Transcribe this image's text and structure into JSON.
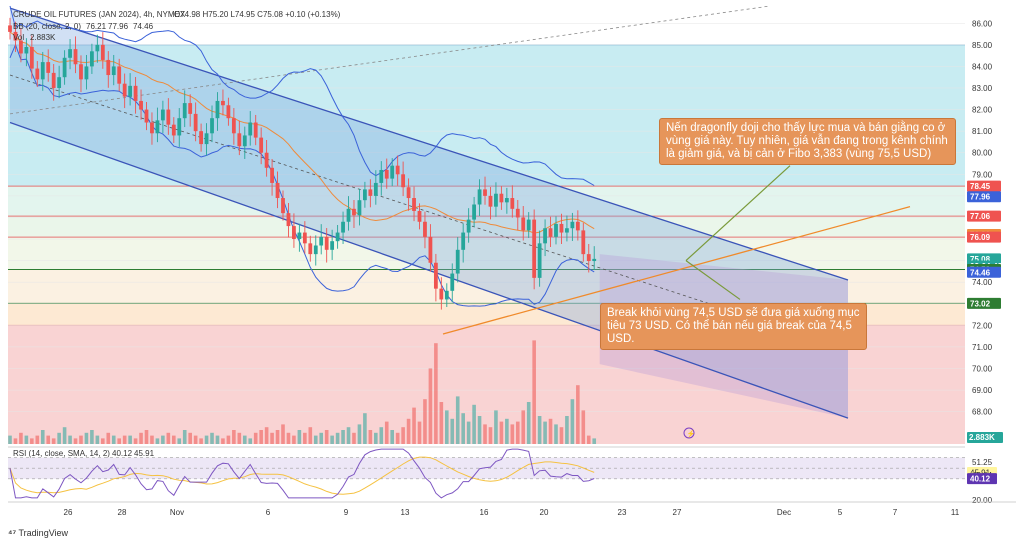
{
  "header": {
    "symbol": "CRUDE OIL FUTURES (JAN 2024), 4h, NYMEX",
    "ohlc": "O74.98 H75.20 L74.95 C75.08 +0.10 (+0.13%)",
    "bb": "BB (20, close, 2, 0)",
    "bb_values": [
      "76.21",
      "77.96",
      "74.46"
    ],
    "vol": "Vol",
    "vol_value": "2.883K"
  },
  "rsi_header": {
    "label": "RSI (14, close, SMA, 14, 2)",
    "values": [
      "40.12",
      "45.91"
    ]
  },
  "annotations": {
    "upper": "Nến dragonfly doji cho thấy lực mua và bán giằng co ở vùng giá này. Tuy nhiên, giá vẫn đang trong kênh chính là giảm giá, và bị cản ở Fibo 3,383 (vùng 75,5 USD)",
    "lower": "Break khỏi vùng 74,5 USD sẽ đưa giá xuống mục tiêu 73 USD. Có thể bán nếu giá break của 74,5 USD."
  },
  "logo": {
    "text": "TradingView"
  },
  "colors": {
    "up": "#26a69a",
    "down": "#ef5350",
    "channel": "#3a54b8",
    "bb": "#3b62d9",
    "annotation": "#e6955a"
  },
  "chart_data": {
    "type": "candlestick",
    "price_axis": {
      "range": [
        66.5,
        86.8
      ],
      "ticks": [
        "86.00",
        "85.00",
        "84.00",
        "83.00",
        "82.00",
        "81.00",
        "80.00",
        "79.00",
        "78.00",
        "77.00",
        "76.00",
        "75.00",
        "74.00",
        "73.00",
        "72.00",
        "71.00",
        "70.00",
        "69.00",
        "68.00"
      ]
    },
    "x_ticks": [
      "26",
      "28",
      "Nov",
      "6",
      "9",
      "13",
      "16",
      "20",
      "23",
      "27",
      "Dec",
      "5",
      "7",
      "11"
    ],
    "price_labels": [
      {
        "value": 78.45,
        "text": "78.45",
        "color": "#ef5350"
      },
      {
        "value": 77.96,
        "text": "77.96",
        "color": "#3b62d9"
      },
      {
        "value": 77.06,
        "text": "77.06",
        "color": "#ef5350"
      },
      {
        "value": 76.21,
        "text": "76.21",
        "color": "#ef8a3a"
      },
      {
        "value": 76.09,
        "text": "76.09",
        "color": "#ef5350"
      },
      {
        "value": 75.08,
        "text": "75.08",
        "color": "#26a69a"
      },
      {
        "value": 74.75,
        "text": "03:04:42",
        "color": "#26a69a"
      },
      {
        "value": 74.59,
        "text": "74.59",
        "color": "#2e7d32"
      },
      {
        "value": 74.46,
        "text": "74.46",
        "color": "#3b62d9"
      },
      {
        "value": 73.02,
        "text": "73.02",
        "color": "#2e7d32"
      }
    ],
    "vol_label": {
      "text": "2.883K",
      "color": "#26a69a"
    },
    "fib_levels": [
      85.0,
      78.45,
      77.06,
      76.09,
      74.59,
      73.02,
      72.0
    ],
    "rsi_axis_ticks": [
      "51.25",
      "45.91",
      "43.44",
      "40.12",
      "20.00"
    ],
    "rsi_value": 40.12,
    "closes": [
      85.6,
      85.2,
      84.6,
      84.9,
      83.9,
      83.4,
      84.2,
      83.7,
      83.0,
      83.5,
      84.4,
      84.8,
      84.1,
      83.4,
      84.0,
      84.7,
      85.0,
      84.3,
      83.6,
      84.0,
      83.2,
      82.6,
      83.1,
      82.4,
      82.0,
      81.4,
      80.9,
      81.5,
      82.0,
      81.3,
      80.8,
      81.6,
      82.3,
      81.8,
      81.0,
      80.4,
      80.9,
      81.6,
      82.4,
      82.2,
      81.6,
      80.9,
      80.3,
      80.8,
      81.4,
      80.7,
      80.0,
      79.3,
      78.6,
      77.9,
      77.2,
      76.6,
      76.0,
      76.3,
      75.8,
      75.3,
      75.7,
      76.1,
      75.5,
      75.9,
      76.3,
      76.8,
      77.4,
      77.1,
      77.8,
      78.3,
      78.0,
      78.6,
      79.2,
      78.8,
      79.4,
      79.0,
      78.4,
      77.9,
      77.3,
      76.8,
      76.1,
      74.9,
      73.7,
      73.2,
      73.6,
      74.4,
      75.5,
      76.3,
      76.9,
      77.6,
      78.3,
      78.0,
      77.5,
      78.1,
      77.7,
      77.9,
      77.4,
      77.0,
      76.4,
      76.9,
      74.2,
      75.8,
      76.5,
      76.1,
      76.7,
      76.3,
      76.5,
      76.8,
      76.4,
      75.3,
      74.98,
      75.08
    ],
    "volumes": [
      0.3,
      0.2,
      0.4,
      0.3,
      0.2,
      0.3,
      0.5,
      0.3,
      0.2,
      0.4,
      0.6,
      0.3,
      0.2,
      0.3,
      0.4,
      0.5,
      0.3,
      0.2,
      0.4,
      0.3,
      0.2,
      0.3,
      0.3,
      0.2,
      0.4,
      0.5,
      0.3,
      0.2,
      0.3,
      0.4,
      0.3,
      0.2,
      0.5,
      0.4,
      0.3,
      0.2,
      0.3,
      0.4,
      0.3,
      0.2,
      0.3,
      0.5,
      0.4,
      0.3,
      0.2,
      0.4,
      0.5,
      0.6,
      0.4,
      0.5,
      0.7,
      0.4,
      0.3,
      0.5,
      0.4,
      0.6,
      0.3,
      0.4,
      0.5,
      0.3,
      0.4,
      0.5,
      0.6,
      0.4,
      0.7,
      1.1,
      0.5,
      0.4,
      0.6,
      0.8,
      0.5,
      0.4,
      0.6,
      0.9,
      1.3,
      0.8,
      1.6,
      2.7,
      3.6,
      1.5,
      1.2,
      0.9,
      1.7,
      1.1,
      0.8,
      1.4,
      1.0,
      0.7,
      0.6,
      1.2,
      0.8,
      0.9,
      0.7,
      0.8,
      1.2,
      1.5,
      3.7,
      1.0,
      0.8,
      0.9,
      0.7,
      0.6,
      1.0,
      1.6,
      2.1,
      1.2,
      0.3,
      0.2
    ]
  }
}
